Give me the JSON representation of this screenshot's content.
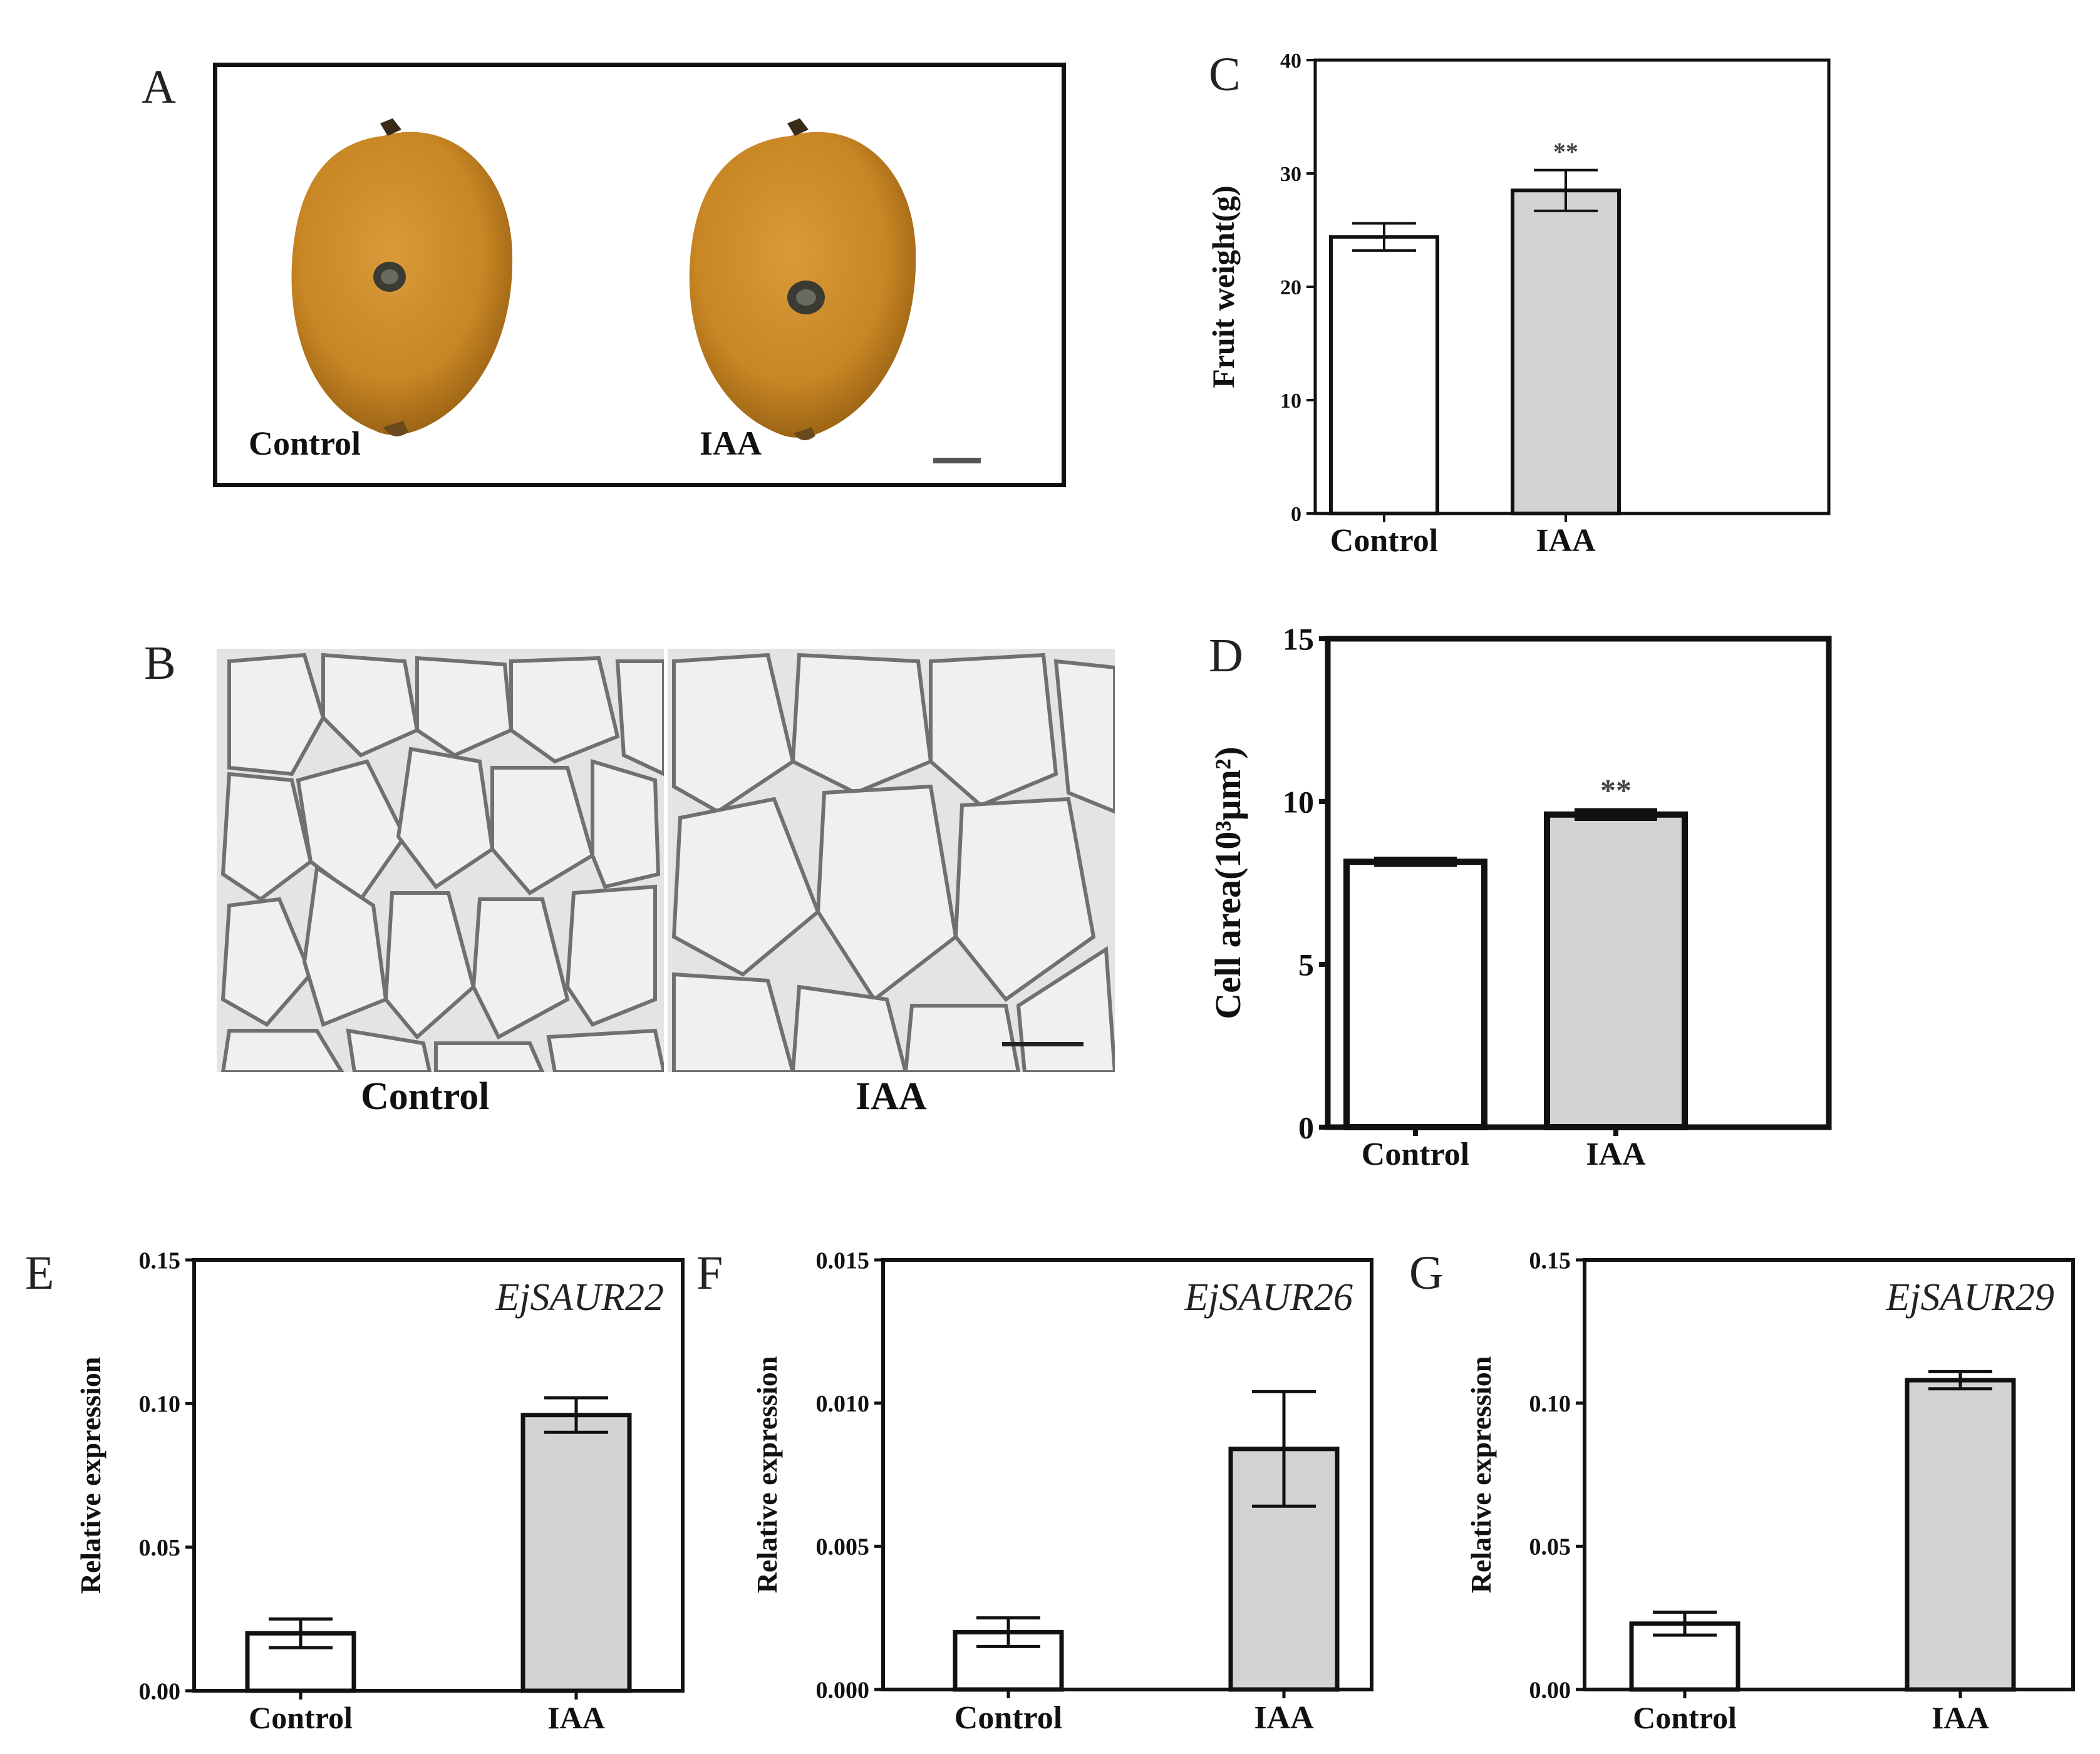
{
  "figure_labels": {
    "a": "A",
    "b": "B",
    "c": "C",
    "d": "D",
    "e": "E",
    "f": "F",
    "g": "G"
  },
  "panel_a": {
    "left_caption": "Control",
    "right_caption": "IAA"
  },
  "panel_b": {
    "left_caption": "Control",
    "right_caption": "IAA"
  },
  "colors": {
    "control_fill": "#ffffff",
    "iaa_fill": "#d3d3d3",
    "stroke": "#111111",
    "fruit": "#c98a2a"
  },
  "chart_data": [
    {
      "id": "C",
      "type": "bar",
      "categories": [
        "Control",
        "IAA"
      ],
      "values": [
        24.4,
        28.5
      ],
      "errors": [
        1.2,
        1.8
      ],
      "ylabel": "Fruit weight(g)",
      "ylim": [
        0,
        40
      ],
      "yticks": [
        "0",
        "10",
        "20",
        "30",
        "40"
      ],
      "annotations": [
        "",
        "**"
      ],
      "title": ""
    },
    {
      "id": "D",
      "type": "bar",
      "categories": [
        "Control",
        "IAA"
      ],
      "values": [
        8.15,
        9.6
      ],
      "errors": [
        0.08,
        0.12
      ],
      "ylabel": "Cell area(10³μm²)",
      "ylim": [
        0,
        15
      ],
      "yticks": [
        "0",
        "5",
        "10",
        "15"
      ],
      "annotations": [
        "",
        "**"
      ],
      "title": ""
    },
    {
      "id": "E",
      "type": "bar",
      "categories": [
        "Control",
        "IAA"
      ],
      "values": [
        0.02,
        0.096
      ],
      "errors": [
        0.005,
        0.006
      ],
      "ylabel": "Relative expression",
      "ylim": [
        0,
        0.15
      ],
      "yticks": [
        "0.00",
        "0.05",
        "0.10",
        "0.15"
      ],
      "annotations": [
        "",
        ""
      ],
      "title": "EjSAUR22"
    },
    {
      "id": "F",
      "type": "bar",
      "categories": [
        "Control",
        "IAA"
      ],
      "values": [
        0.002,
        0.0084
      ],
      "errors": [
        0.0005,
        0.002
      ],
      "ylabel": "Relative expression",
      "ylim": [
        0,
        0.015
      ],
      "yticks": [
        "0.000",
        "0.005",
        "0.010",
        "0.015"
      ],
      "annotations": [
        "",
        ""
      ],
      "title": "EjSAUR26"
    },
    {
      "id": "G",
      "type": "bar",
      "categories": [
        "Control",
        "IAA"
      ],
      "values": [
        0.023,
        0.108
      ],
      "errors": [
        0.004,
        0.003
      ],
      "ylabel": "Relative expression",
      "ylim": [
        0,
        0.15
      ],
      "yticks": [
        "0.00",
        "0.05",
        "0.10",
        "0.15"
      ],
      "annotations": [
        "",
        ""
      ],
      "title": "EjSAUR29"
    }
  ]
}
